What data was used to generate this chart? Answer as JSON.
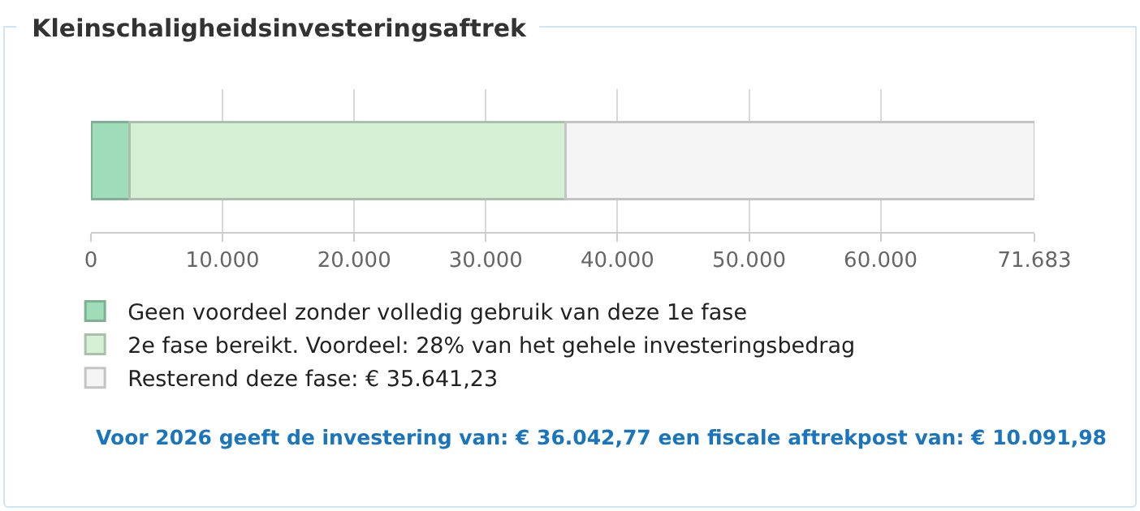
{
  "chart_data": {
    "type": "bar",
    "title": "Kleinschaligheidsinvesteringsaftrek",
    "orientation": "horizontal",
    "stacked": true,
    "categories": [
      null
    ],
    "series": [
      {
        "name": "Geen voordeel zonder volledig gebruik van deze 1e fase",
        "color": "#9fdcb8",
        "values": [
          2900
        ]
      },
      {
        "name": "2e fase bereikt. Voordeel: 28% van het gehele investeringsbedrag",
        "color": "#d6f0d6",
        "values": [
          33142
        ]
      },
      {
        "name": "Resterend deze fase: € 35.641,23",
        "color": "#f5f5f5",
        "values": [
          35641
        ]
      }
    ],
    "xlim": [
      0,
      71683
    ],
    "xticks": [
      0,
      {
        "value": 10000,
        "label": "10.000"
      },
      {
        "value": 20000,
        "label": "20.000"
      },
      {
        "value": 30000,
        "label": "30.000"
      },
      {
        "value": 40000,
        "label": "40.000"
      },
      {
        "value": 50000,
        "label": "50.000"
      },
      {
        "value": 60000,
        "label": "60.000"
      },
      {
        "value": 71683,
        "label": "71.683"
      }
    ],
    "grid": "x",
    "legend": "bottom",
    "tick_labels": "x",
    "annotations": [
      "Voor 2026 geeft de investering van: € 36.042,77 een fiscale aftrekpost van: € 10.091,98"
    ]
  }
}
